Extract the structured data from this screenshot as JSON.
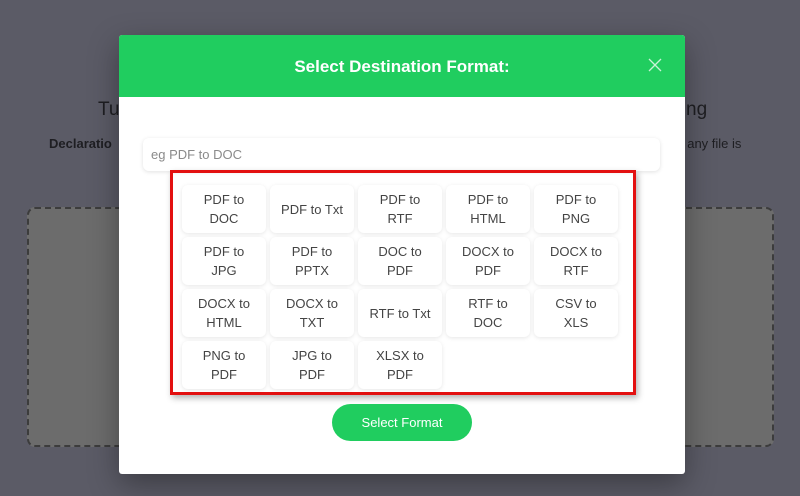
{
  "background": {
    "heading_left": "Tu",
    "heading_right": "ng",
    "declaration_left": "Declaratio",
    "declaration_right": "f any file is"
  },
  "modal": {
    "title": "Select Destination Format:",
    "close_icon": "close-x-icon",
    "search_placeholder": "eg PDF to DOC",
    "search_value": "",
    "formats": [
      "PDF to DOC",
      "PDF to Txt",
      "PDF to RTF",
      "PDF to HTML",
      "PDF to PNG",
      "PDF to JPG",
      "PDF to PPTX",
      "DOC to PDF",
      "DOCX to PDF",
      "DOCX to RTF",
      "DOCX to HTML",
      "DOCX to TXT",
      "RTF to Txt",
      "RTF to DOC",
      "CSV to XLS",
      "PNG to PDF",
      "JPG to PDF",
      "XLSX to PDF"
    ],
    "select_button": "Select Format"
  },
  "colors": {
    "accent": "#20cd5f",
    "highlight": "#e31010",
    "overlay": "#5b5b66"
  }
}
